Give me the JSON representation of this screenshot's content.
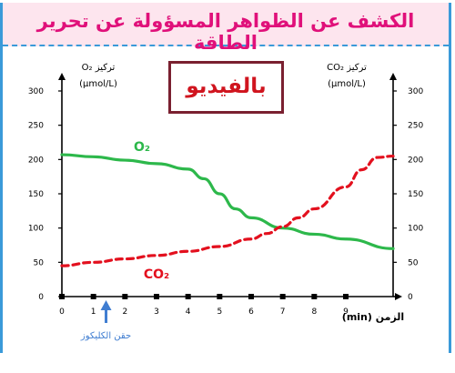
{
  "banner": {
    "title": "الكشف عن الظواهر المسؤولة عن تحرير الطاقة"
  },
  "video_box": {
    "label": "بالفيديو"
  },
  "annotation": {
    "arrow_label": "حقن الكليكوز"
  },
  "colors": {
    "banner_bg": "#fde5ee",
    "banner_text": "#e0107a",
    "o2_series": "#2db84b",
    "co2_series": "#e3101e",
    "arrow": "#3f7dd1",
    "video_border": "#7a2030"
  },
  "chart_data": {
    "type": "line",
    "left_axis": {
      "label_line1": "تركيز O₂",
      "label_line2": "(µmol/L)",
      "ylim": [
        0,
        300
      ],
      "ticks": [
        0,
        50,
        100,
        150,
        200,
        250,
        300
      ]
    },
    "right_axis": {
      "label_line1": "تركيز CO₂",
      "label_line2": "(µmol/L)",
      "ylim": [
        0,
        300
      ],
      "ticks": [
        0,
        50,
        100,
        150,
        200,
        250,
        300
      ]
    },
    "x_axis": {
      "label": "الزمن (min)",
      "xlim": [
        0,
        10.5
      ],
      "ticks": [
        0,
        1,
        2,
        3,
        4,
        5,
        6,
        7,
        8,
        9
      ]
    },
    "injection_time": 1.4,
    "series": [
      {
        "name": "O₂",
        "style": "solid",
        "x": [
          0,
          1,
          2,
          3,
          4,
          4.5,
          5,
          5.5,
          6,
          7,
          8,
          9,
          10.5
        ],
        "y": [
          207,
          204,
          199,
          194,
          186,
          172,
          150,
          128,
          115,
          100,
          91,
          84,
          70
        ]
      },
      {
        "name": "CO₂",
        "style": "dashed",
        "x": [
          0,
          1,
          2,
          3,
          4,
          5,
          6,
          6.5,
          7,
          7.5,
          8,
          9,
          9.5,
          10,
          10.5
        ],
        "y": [
          45,
          50,
          55,
          60,
          66,
          73,
          84,
          92,
          102,
          115,
          128,
          160,
          185,
          203,
          205
        ]
      }
    ]
  }
}
